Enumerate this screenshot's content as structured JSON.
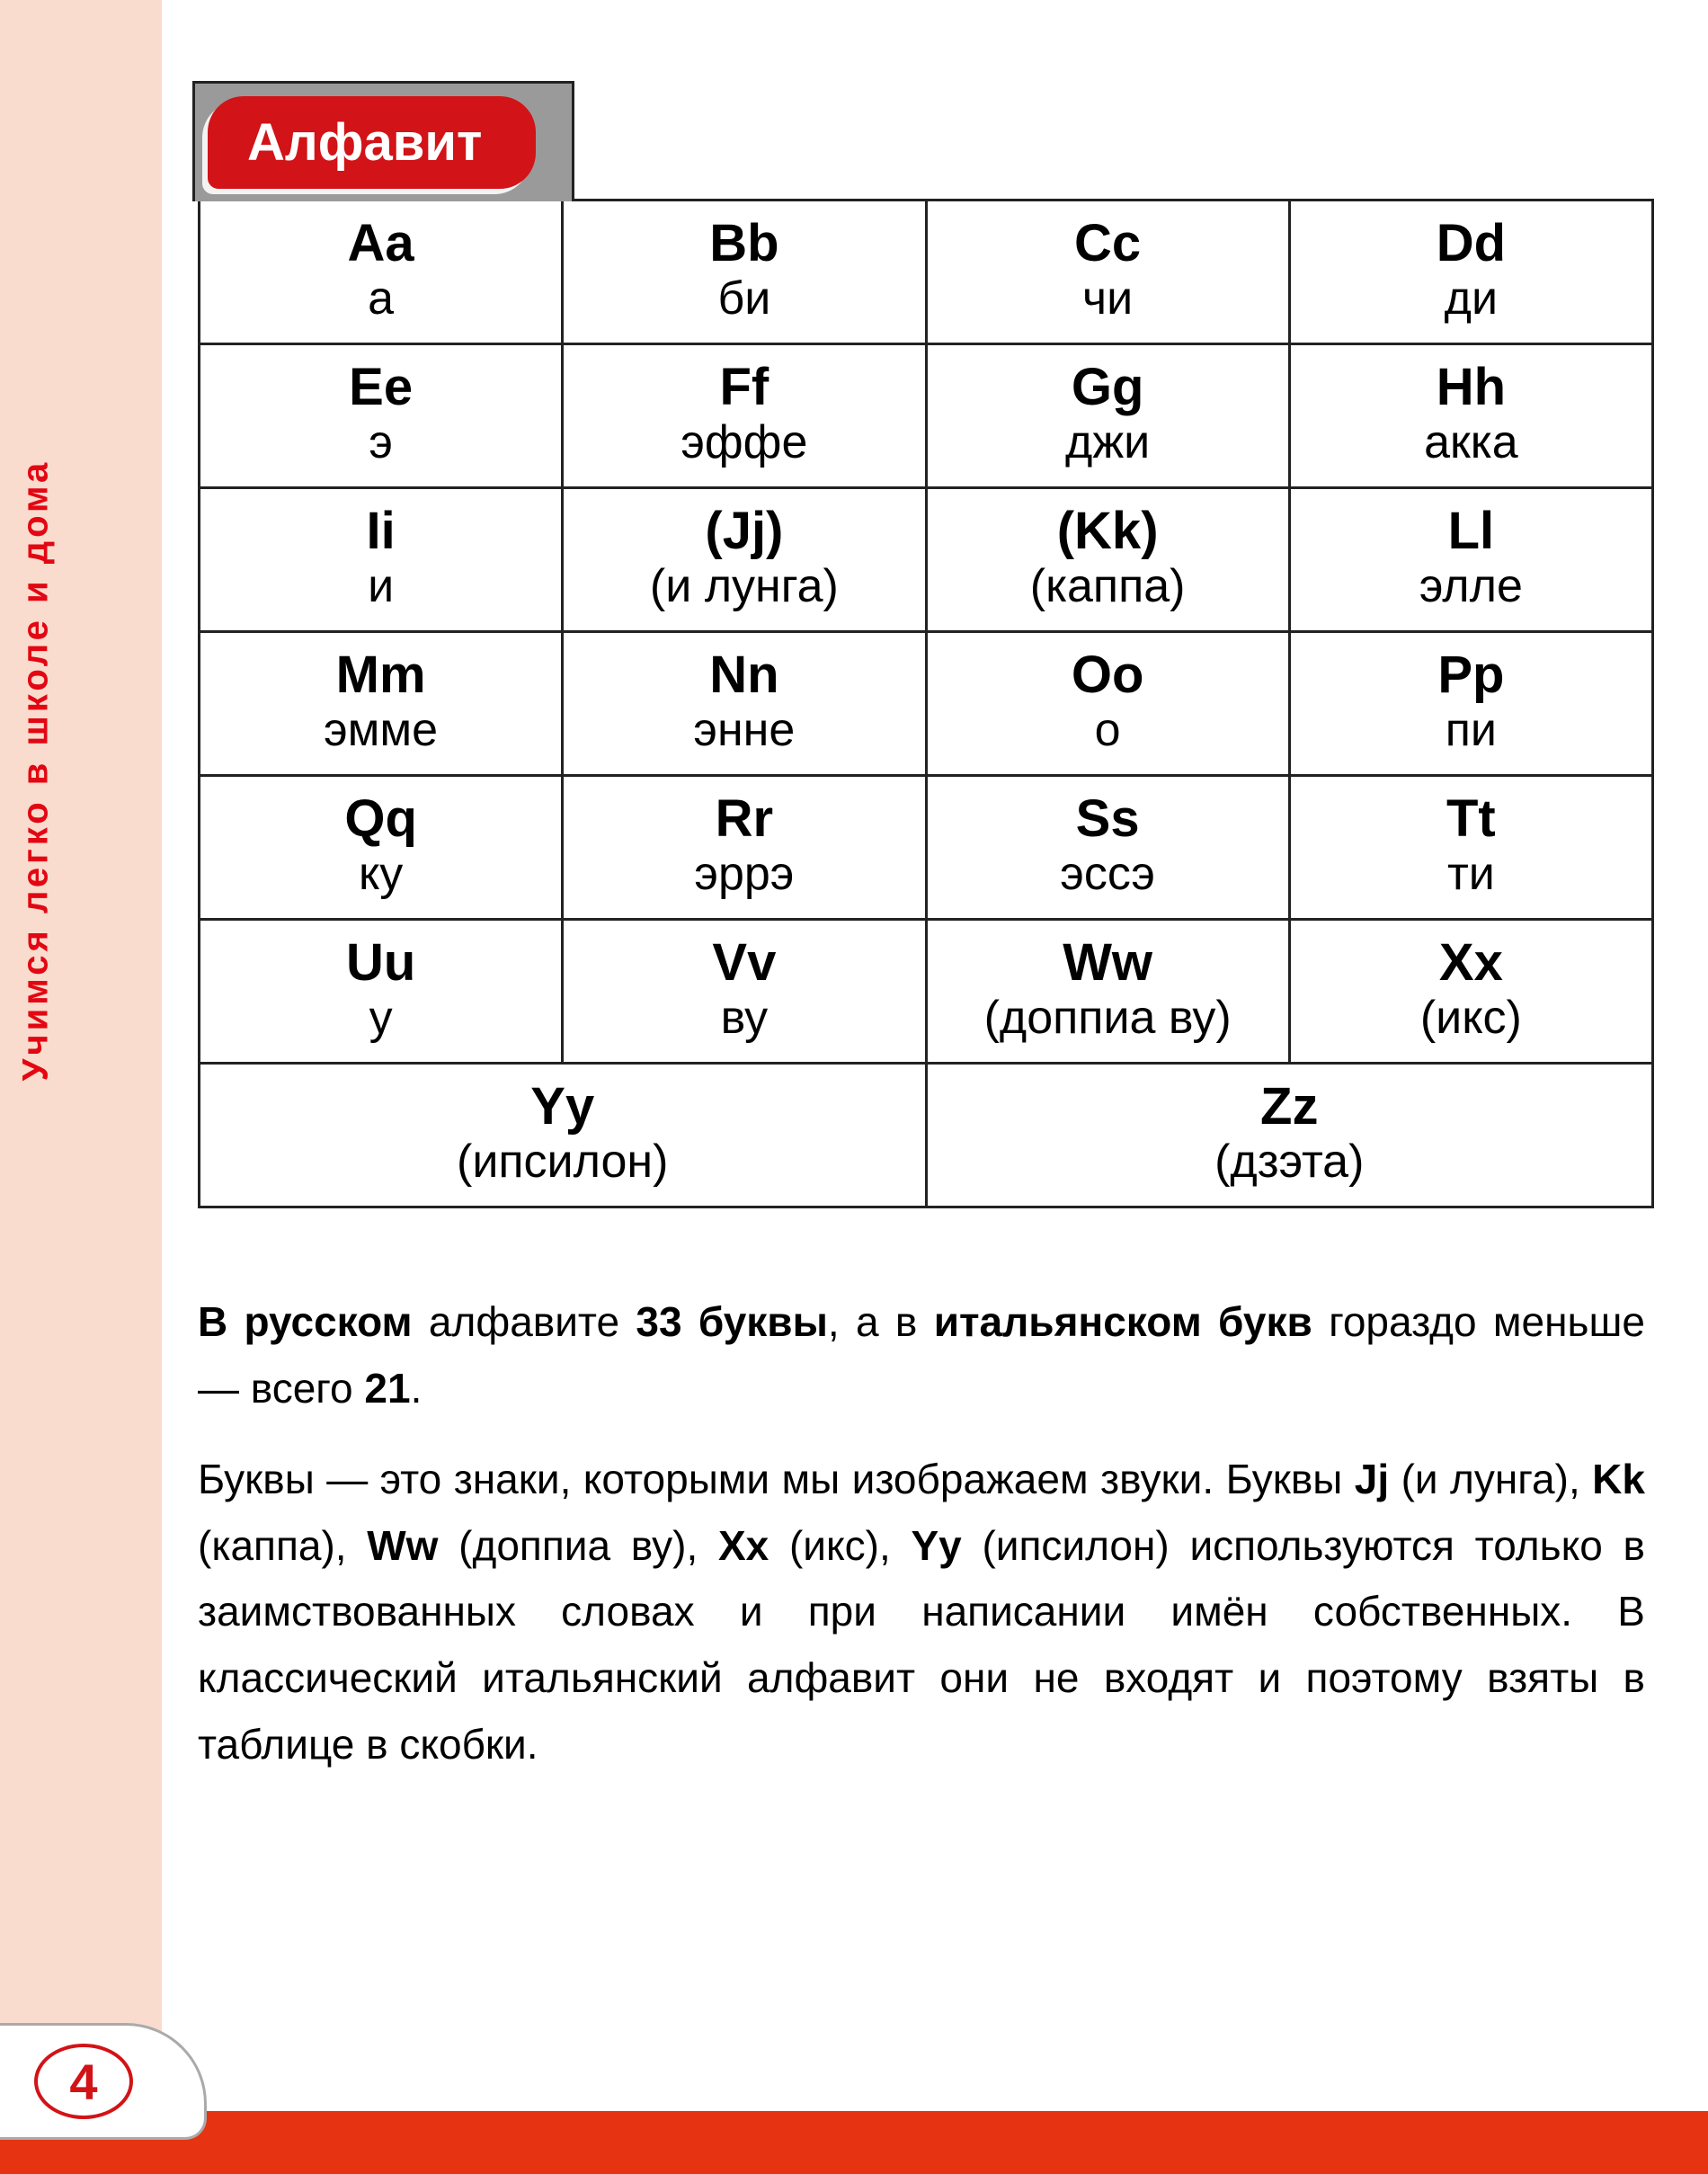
{
  "side_label": "Учимся легко в школе и дома",
  "title": "Алфавит",
  "page_number": "4",
  "colors": {
    "left_strip": "#f9dccd",
    "accent_red": "#d21317",
    "bottom_bar": "#e63312",
    "title_grey": "#9a9a9a",
    "border": "#222222",
    "white": "#ffffff"
  },
  "typography": {
    "letter_fontsize": 58,
    "pron_fontsize": 52,
    "body_fontsize": 46,
    "title_fontsize": 58,
    "side_fontsize": 40
  },
  "table": {
    "type": "table",
    "columns": 4,
    "rows": [
      [
        {
          "letter": "Aa",
          "pron": "а"
        },
        {
          "letter": "Bb",
          "pron": "би"
        },
        {
          "letter": "Cc",
          "pron": "чи"
        },
        {
          "letter": "Dd",
          "pron": "ди"
        }
      ],
      [
        {
          "letter": "Ee",
          "pron": "э"
        },
        {
          "letter": "Ff",
          "pron": "эффе"
        },
        {
          "letter": "Gg",
          "pron": "джи"
        },
        {
          "letter": "Hh",
          "pron": "акка"
        }
      ],
      [
        {
          "letter": "Ii",
          "pron": "и"
        },
        {
          "letter": "(Jj)",
          "pron": "(и  лунга)"
        },
        {
          "letter": "(Kk)",
          "pron": "(каппа)"
        },
        {
          "letter": "Ll",
          "pron": "элле"
        }
      ],
      [
        {
          "letter": "Mm",
          "pron": "эмме"
        },
        {
          "letter": "Nn",
          "pron": "энне"
        },
        {
          "letter": "Oo",
          "pron": "о"
        },
        {
          "letter": "Pp",
          "pron": "пи"
        }
      ],
      [
        {
          "letter": "Qq",
          "pron": "ку"
        },
        {
          "letter": "Rr",
          "pron": "эррэ"
        },
        {
          "letter": "Ss",
          "pron": "эссэ"
        },
        {
          "letter": "Tt",
          "pron": "ти"
        }
      ],
      [
        {
          "letter": "Uu",
          "pron": "у"
        },
        {
          "letter": "Vv",
          "pron": "ву"
        },
        {
          "letter": "Ww",
          "pron": "(доппиа ву)"
        },
        {
          "letter": "Xx",
          "pron": "(икс)"
        }
      ]
    ],
    "last_row": [
      {
        "letter": "Yy",
        "pron": "(ипсилон)",
        "colspan": 2
      },
      {
        "letter": "Zz",
        "pron": "(дзэта)",
        "colspan": 2
      }
    ]
  },
  "paragraphs": {
    "p1_parts": {
      "a": "В русском",
      "b": " алфавите ",
      "c": "33 буквы",
      "d": ", а в ",
      "e": "итальянском букв",
      "f": " гораздо меньше — всего ",
      "g": "21",
      "h": "."
    },
    "p2_parts": {
      "a": "Буквы — это знаки, которыми мы изображаем звуки. Буквы ",
      "jj": "Jj",
      "jj_t": " (и лунга), ",
      "kk": "Kk",
      "kk_t": " (каппа), ",
      "ww": "Ww",
      "ww_t": " (доппиа ву), ",
      "xx": "Xx",
      "xx_t": " (икс), ",
      "yy": "Yy",
      "yy_t": " (ипсилон) используются только в заимство­ванных словах и при написании имён собственных. В классический итальянский алфавит они не входят и поэтому взяты в таблице в скобки."
    }
  }
}
